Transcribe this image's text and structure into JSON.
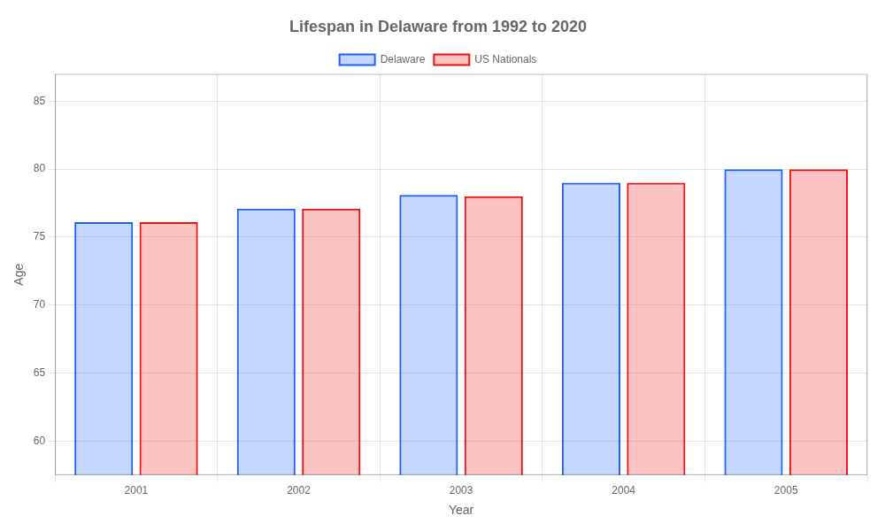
{
  "chart_data": {
    "type": "bar",
    "title": "Lifespan in Delaware from 1992 to 2020",
    "x_label": "Year",
    "y_label": "Age",
    "categories": [
      "2001",
      "2002",
      "2003",
      "2004",
      "2005"
    ],
    "series": [
      {
        "name": "Delaware",
        "color": "#1a5fff",
        "values": [
          76.1,
          77.1,
          78.1,
          79.0,
          80.0
        ]
      },
      {
        "name": "US Nationals",
        "color": "#ee1111",
        "values": [
          76.1,
          77.1,
          78.0,
          79.0,
          80.0
        ]
      }
    ],
    "ylim": [
      57.5,
      87
    ],
    "yticks": [
      60,
      65,
      70,
      75,
      80,
      85
    ],
    "grid": true,
    "legend": "top"
  }
}
